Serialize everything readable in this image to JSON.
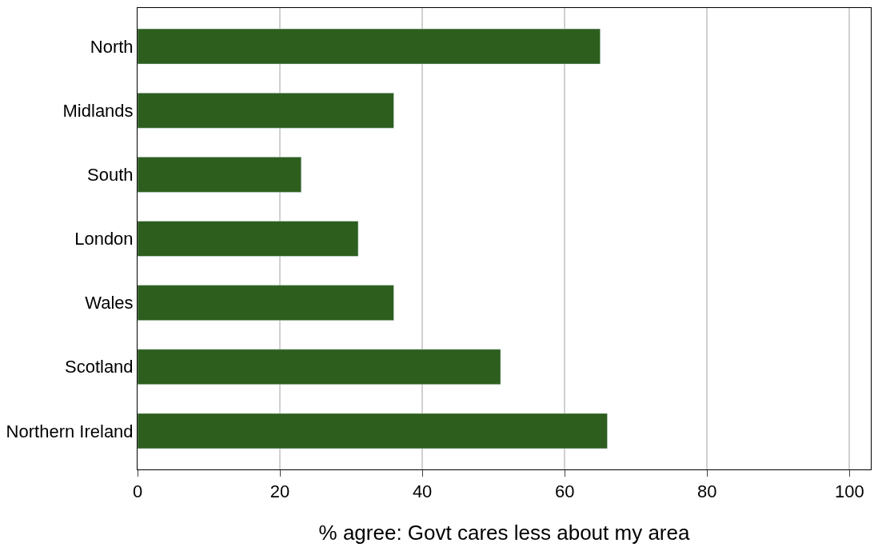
{
  "chart_data": {
    "type": "bar",
    "orientation": "horizontal",
    "xlabel": "% agree: Govt cares less about my area",
    "categories": [
      "North",
      "Midlands",
      "South",
      "London",
      "Wales",
      "Scotland",
      "Northern Ireland"
    ],
    "values": [
      65,
      36,
      23,
      31,
      36,
      51,
      66
    ],
    "color": "#2d5e1e",
    "xlim": [
      0,
      103
    ],
    "xticks": [
      0,
      20,
      40,
      60,
      80,
      100
    ],
    "grid": "x"
  }
}
